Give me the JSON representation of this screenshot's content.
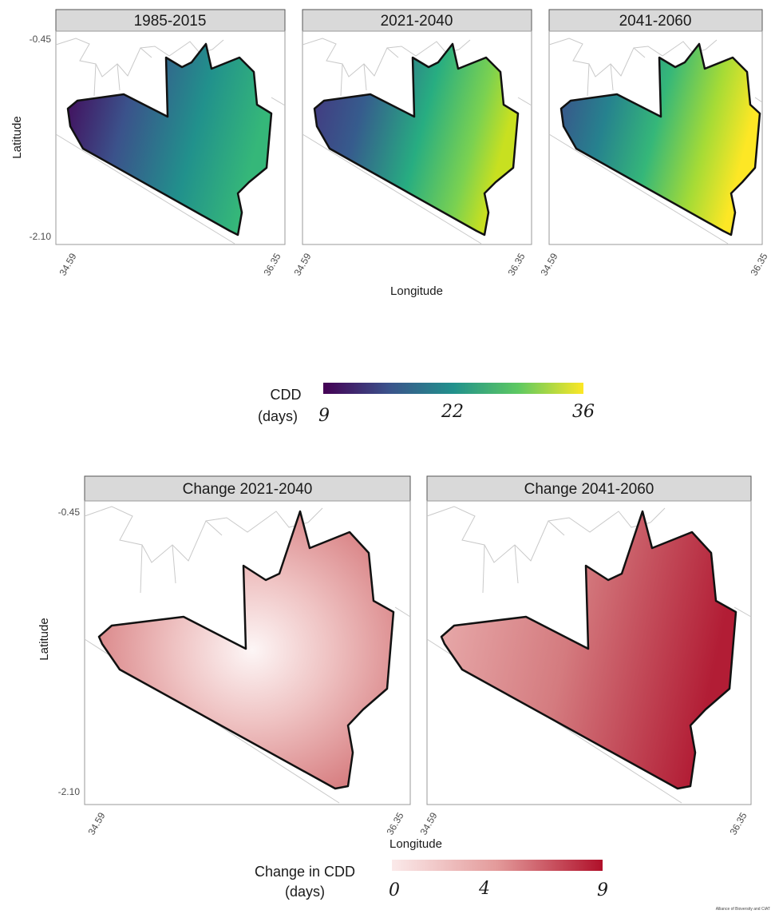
{
  "figure": {
    "top_row": {
      "panels": [
        "1985-2015",
        "2021-2040",
        "2041-2060"
      ],
      "y_ticks": [
        "-0.45",
        "-2.10"
      ],
      "x_ticks": [
        "34.59",
        "36.35"
      ],
      "y_title": "Latitude",
      "x_title": "Longitude",
      "palette": "viridis",
      "legend": {
        "title_line1": "CDD",
        "title_line2": "(days)",
        "labels": [
          "9",
          "22",
          "36"
        ],
        "colors": [
          "#440154",
          "#3b528b",
          "#21918c",
          "#5ec962",
          "#fde725"
        ]
      }
    },
    "bottom_row": {
      "panels": [
        "Change 2021-2040",
        "Change 2041-2060"
      ],
      "y_ticks": [
        "-0.45",
        "-2.10"
      ],
      "x_ticks": [
        "34.59",
        "36.35",
        "34.59",
        "36.35"
      ],
      "y_title": "Latitude",
      "x_title": "Longitude",
      "legend": {
        "title_line1": "Change in CDD",
        "title_line2": "(days)",
        "labels": [
          "0",
          "4",
          "9"
        ],
        "colors": [
          "#fbeaea",
          "#e39a9a",
          "#b0102a"
        ]
      }
    },
    "credit": "Alliance of Bioversity and CIAT"
  }
}
